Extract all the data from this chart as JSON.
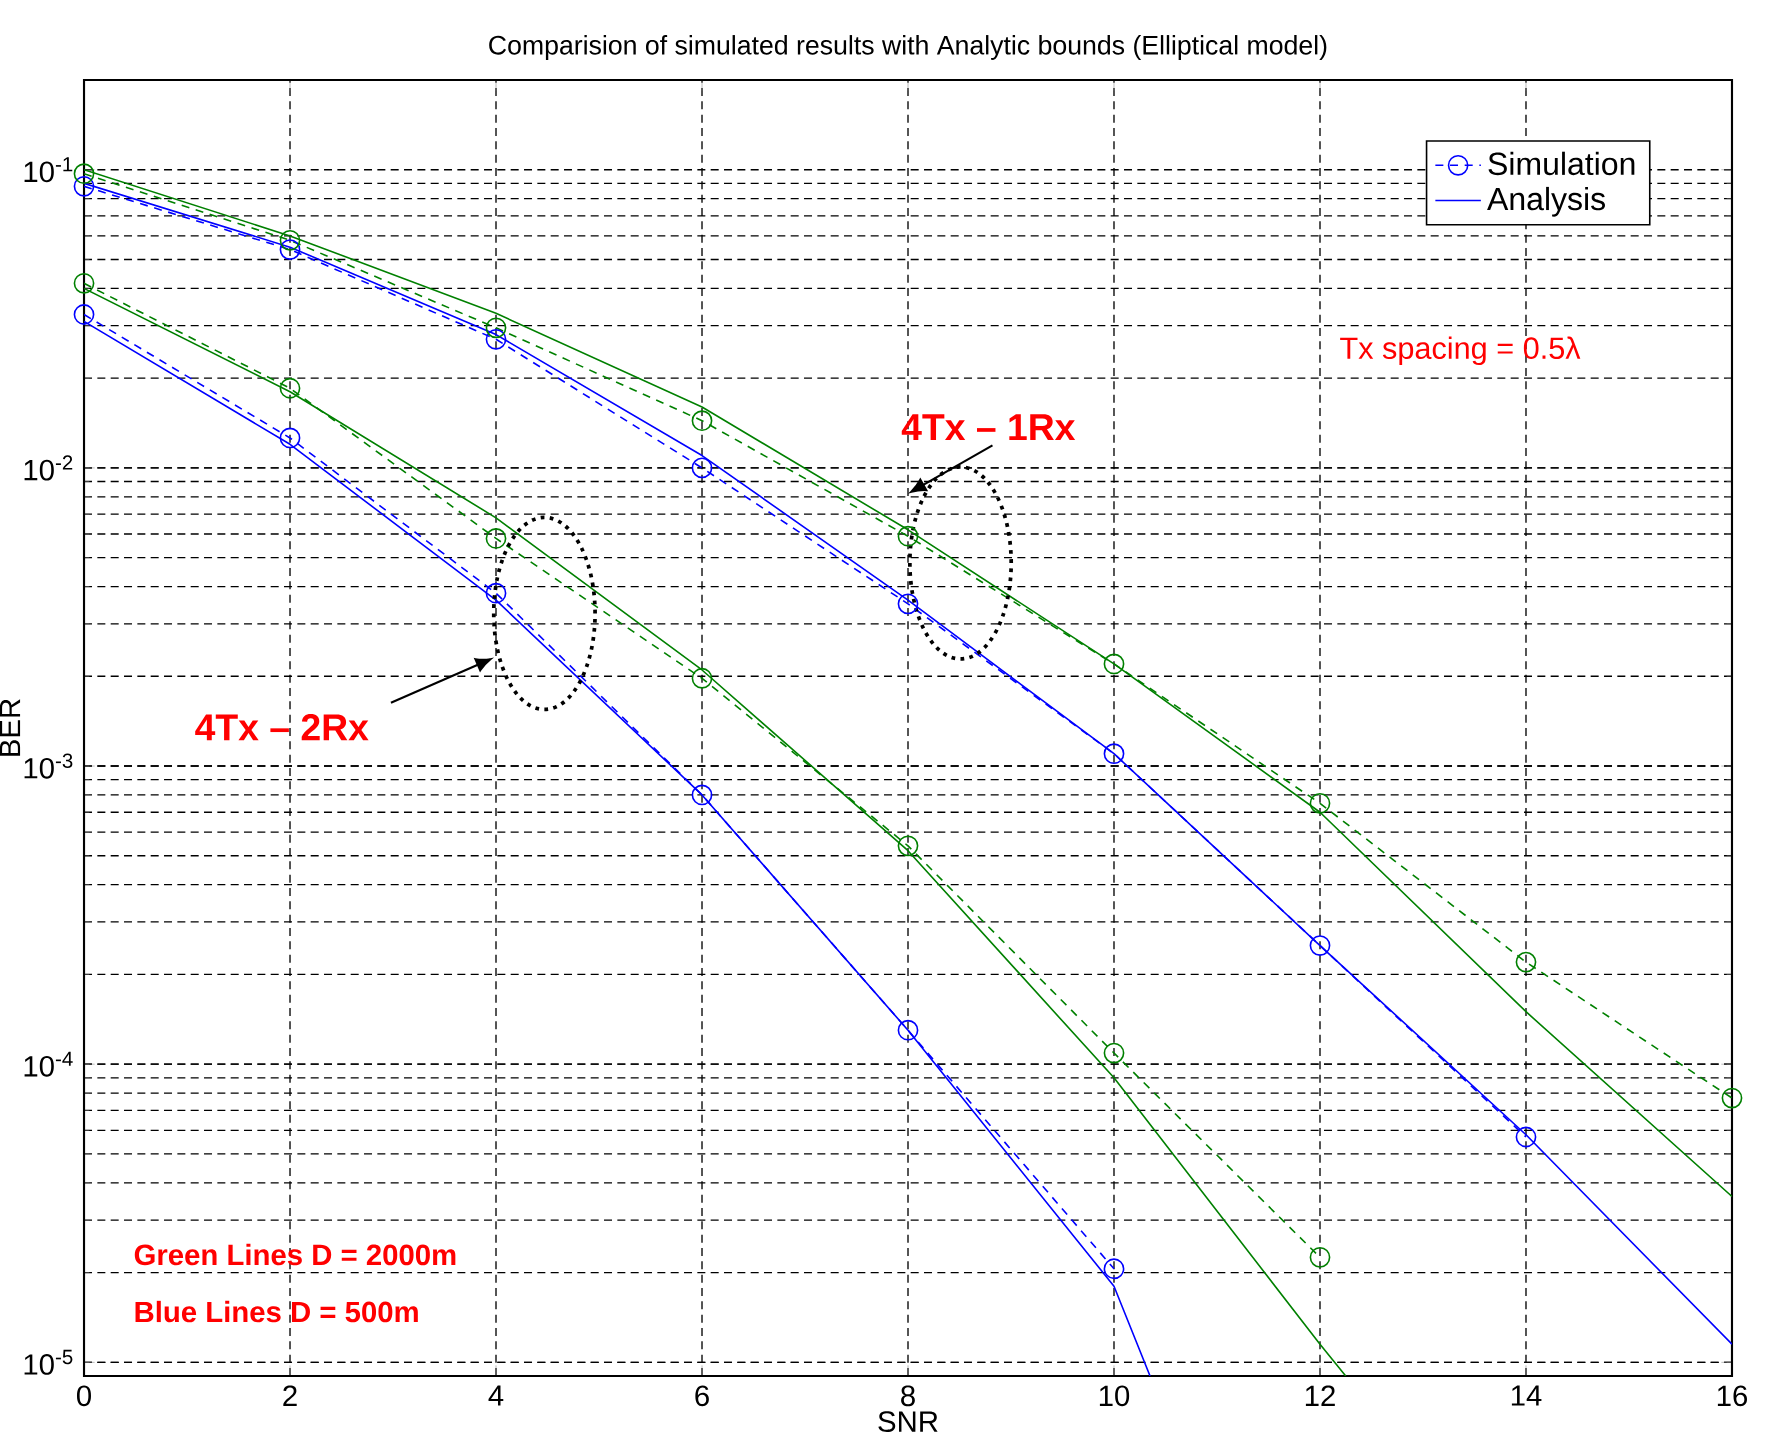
{
  "chart_data": {
    "type": "line",
    "title": "Comparision of simulated results with Analytic bounds (Elliptical model)",
    "xlabel": "SNR",
    "ylabel": "BER",
    "log": "y",
    "grid": true,
    "legend": "top right",
    "xlim": [
      0,
      16
    ],
    "ylim": [
      9e-06,
      0.2
    ],
    "xticks": [
      0,
      2,
      4,
      6,
      8,
      10,
      12,
      14,
      16
    ],
    "yticks": [
      {
        "value": 1e-05,
        "label": "10$^{-5}$"
      },
      {
        "value": 0.0001,
        "label": "10$^{-4}$"
      },
      {
        "value": 0.001,
        "label": "10$^{-3}$"
      },
      {
        "value": 0.01,
        "label": "10$^{-2}$"
      },
      {
        "value": 0.1,
        "label": "10$^{-1}$"
      }
    ],
    "annotations": [
      "Tx spacing = 0.5λ",
      "4Tx – 1Rx",
      "4Tx – 2Rx",
      "Green Lines D  = 2000m",
      "Blue Lines   D  = 500m"
    ],
    "series": [
      {
        "name": "Simulation",
        "color": "#0000ff",
        "line_style": "dashed",
        "marker": "circle",
        "x": [
          0,
          2,
          4,
          6,
          8,
          10,
          12,
          14
        ],
        "values": [
          0.088,
          0.054,
          0.027,
          0.01,
          0.0035,
          0.0011,
          0.00025,
          5.7e-05
        ]
      },
      {
        "name": "Analysis",
        "color": "#0000ff",
        "line_style": "solid",
        "marker": "none",
        "x": [
          0,
          2,
          4,
          6,
          8,
          10,
          12,
          14,
          16
        ],
        "values": [
          0.09,
          0.055,
          0.028,
          0.011,
          0.0036,
          0.0011,
          0.00025,
          5.8e-05,
          1.15e-05
        ]
      },
      {
        "color": "#008000",
        "line_style": "dashed",
        "marker": "circle",
        "x": [
          0,
          2,
          4,
          6,
          8,
          10,
          12,
          14,
          16
        ],
        "values": [
          0.097,
          0.058,
          0.0295,
          0.0144,
          0.0059,
          0.0022,
          0.00075,
          0.00022,
          7.7e-05
        ]
      },
      {
        "color": "#008000",
        "line_style": "solid",
        "marker": "none",
        "x": [
          0,
          2,
          4,
          6,
          8,
          10,
          12,
          14,
          16
        ],
        "values": [
          0.1,
          0.06,
          0.033,
          0.016,
          0.0062,
          0.0022,
          0.0007,
          0.00015,
          3.6e-05
        ]
      },
      {
        "color": "#0000ff",
        "line_style": "dashed",
        "marker": "circle",
        "x": [
          0,
          2,
          4,
          6,
          8,
          10
        ],
        "values": [
          0.0327,
          0.0126,
          0.0038,
          0.0008,
          0.00013,
          2.06e-05
        ]
      },
      {
        "color": "#0000ff",
        "line_style": "solid",
        "marker": "none",
        "x": [
          0,
          2,
          4,
          6,
          8,
          10,
          10.35
        ],
        "values": [
          0.031,
          0.012,
          0.0036,
          0.0008,
          0.00013,
          1.8e-05,
          9e-06
        ]
      },
      {
        "color": "#008000",
        "line_style": "dashed",
        "marker": "circle",
        "x": [
          0,
          2,
          4,
          6,
          8,
          10,
          12
        ],
        "values": [
          0.0416,
          0.0185,
          0.0058,
          0.00197,
          0.00054,
          0.000109,
          2.25e-05
        ]
      },
      {
        "color": "#008000",
        "line_style": "solid",
        "marker": "none",
        "x": [
          0,
          2,
          4,
          6,
          8,
          10,
          12,
          12.25
        ],
        "values": [
          0.04,
          0.018,
          0.0068,
          0.0021,
          0.00052,
          9e-05,
          1.15e-05,
          9e-06
        ]
      }
    ]
  }
}
